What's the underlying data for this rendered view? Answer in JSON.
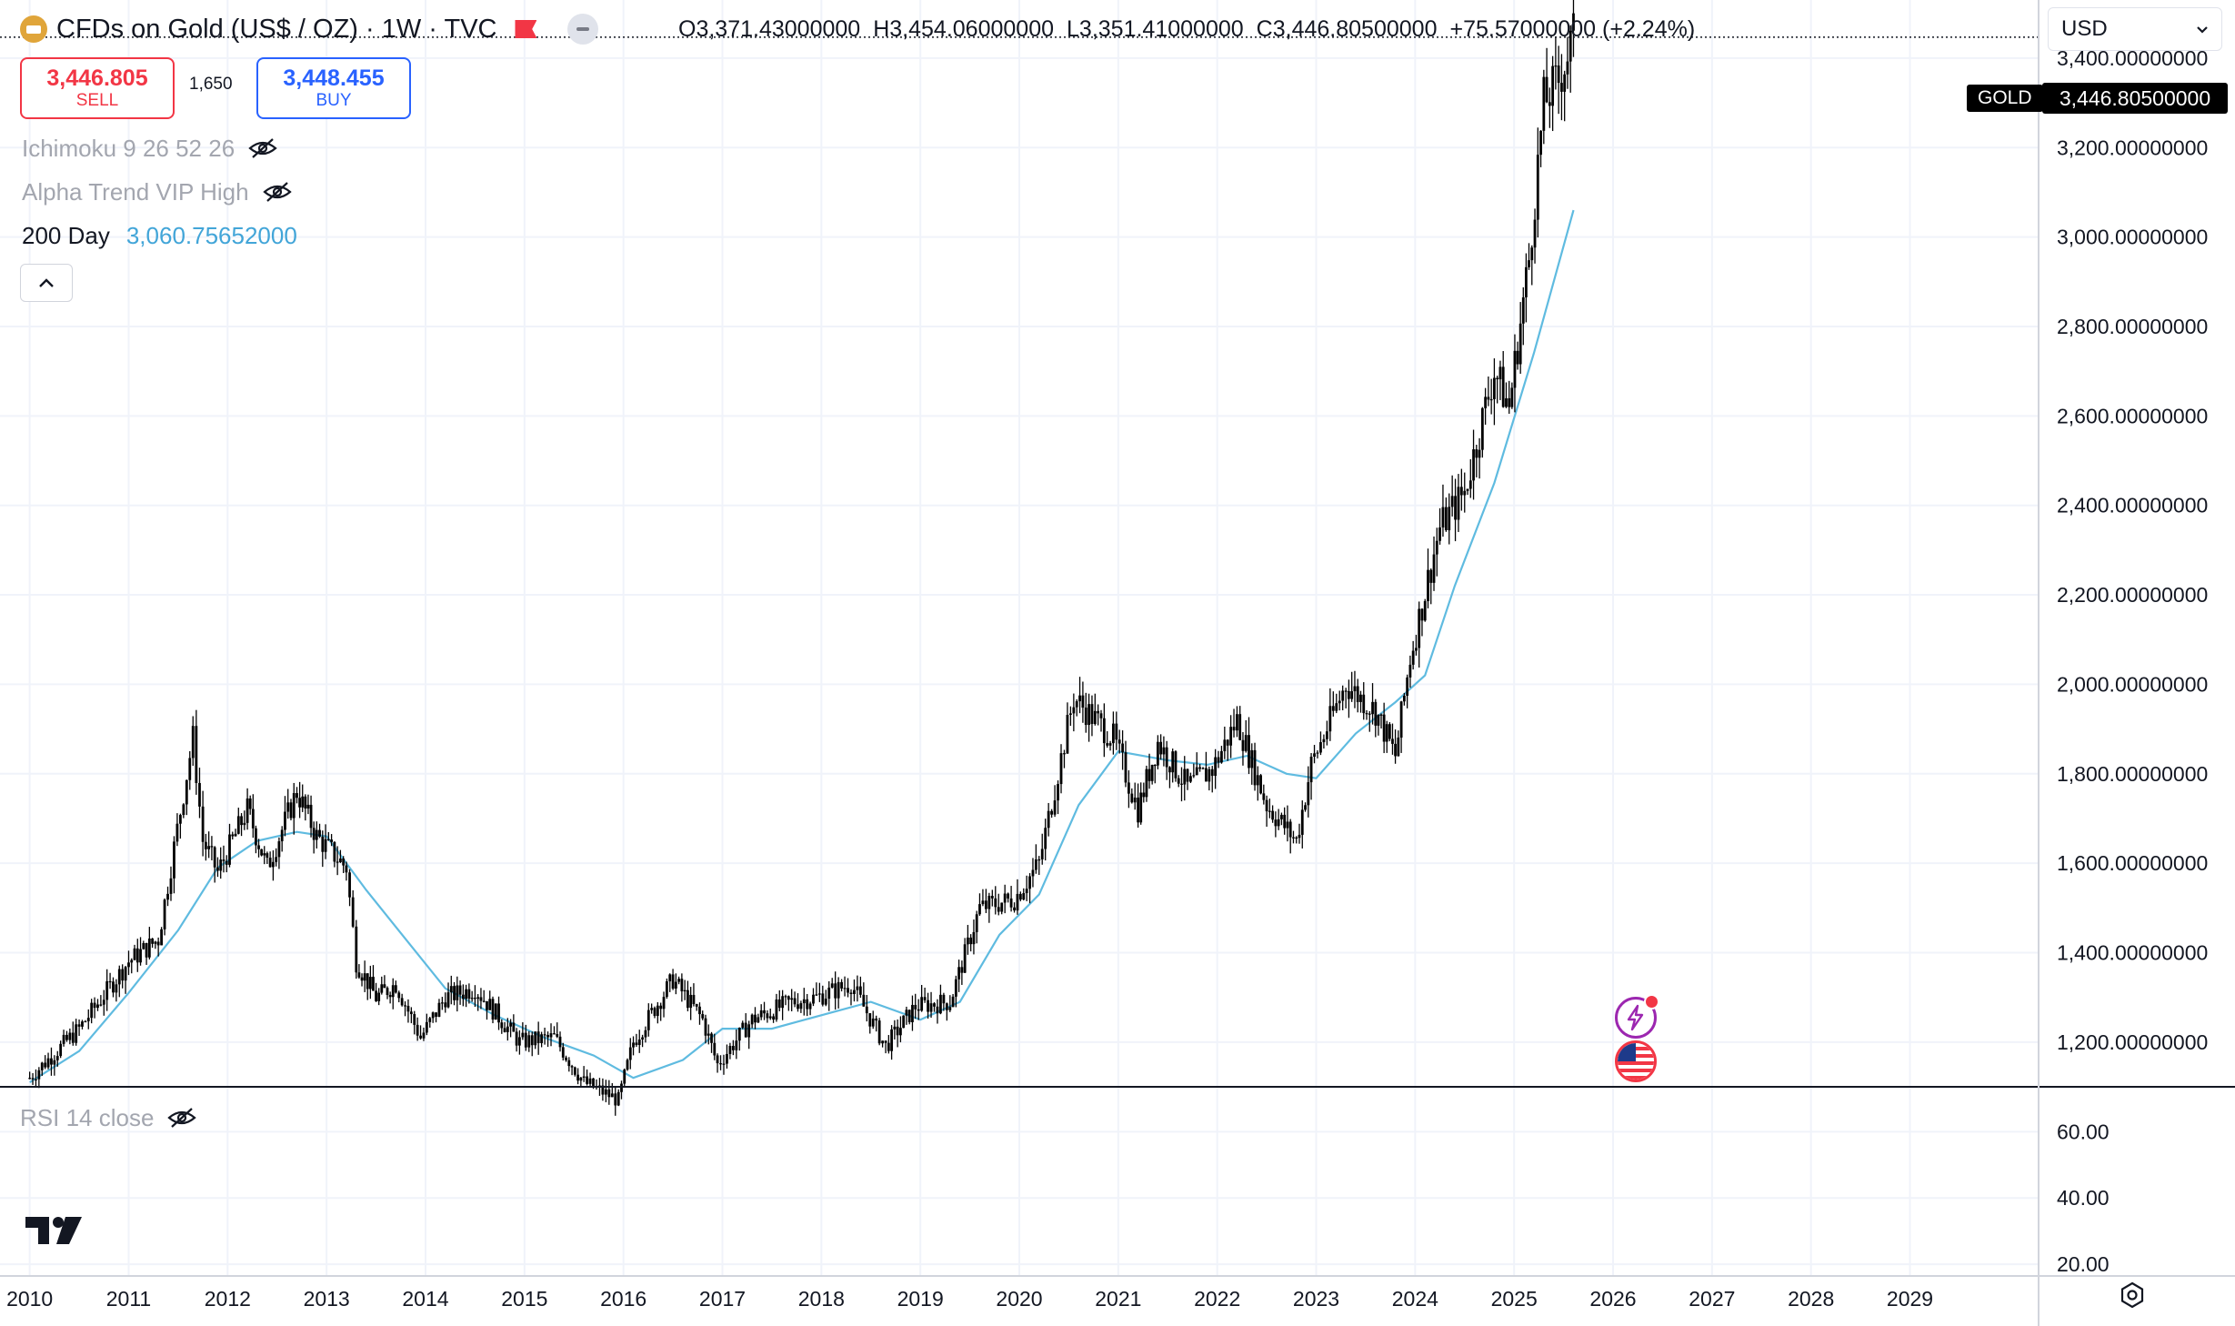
{
  "header": {
    "title": "CFDs on Gold (US$ / OZ) · 1W · TVC",
    "ohlc": {
      "o_key": "O",
      "o_val": "3,371.43000000",
      "h_key": "H",
      "h_val": "3,454.06000000",
      "l_key": "L",
      "l_val": "3,351.41000000",
      "c_key": "C",
      "c_val": "3,446.80500000",
      "change": "+75.57000000 (+2.24%)"
    }
  },
  "trade": {
    "sell_price": "3,446.805",
    "sell_label": "SELL",
    "spread": "1,650",
    "buy_price": "3,448.455",
    "buy_label": "BUY"
  },
  "indicators": {
    "ichimoku": "Ichimoku 9 26 52 26",
    "alpha": "Alpha Trend VIP High",
    "ma_name": "200 Day",
    "ma_value": "3,060.75652000"
  },
  "currency_select": "USD",
  "price_tag": {
    "symbol": "GOLD",
    "price": "3,446.80500000"
  },
  "rsi": {
    "label": "RSI 14 close"
  },
  "colors": {
    "up": "#000000",
    "ma_line": "#5fbbe0",
    "sell": "#f23645",
    "buy": "#2962ff",
    "ma_text": "#42a5d8"
  },
  "icons": [
    "gold-logo-icon",
    "flag-icon",
    "minus-icon",
    "eye-off-icon",
    "chevron-up-icon",
    "chevron-down-icon",
    "tradingview-logo-icon",
    "flash-icon",
    "us-flag-icon",
    "gear-icon"
  ],
  "chart_data": [
    {
      "type": "line",
      "price_axis": [
        "3,400.00000000",
        "3,200.00000000",
        "3,000.00000000",
        "2,800.00000000",
        "2,600.00000000",
        "2,400.00000000",
        "2,200.00000000",
        "2,000.00000000",
        "1,800.00000000",
        "1,600.00000000",
        "1,400.00000000",
        "1,200.00000000"
      ],
      "price_ticks": [
        3400,
        3200,
        3000,
        2800,
        2600,
        2400,
        2200,
        2000,
        1800,
        1600,
        1400,
        1200
      ],
      "x_labels": [
        "2010",
        "2011",
        "2012",
        "2013",
        "2014",
        "2015",
        "2016",
        "2017",
        "2018",
        "2019",
        "2020",
        "2021",
        "2022",
        "2023",
        "2024",
        "2025",
        "2026",
        "2027",
        "2028",
        "2029"
      ],
      "ylim": [
        1100,
        3530
      ],
      "xlim": [
        2009.7,
        2030.3
      ],
      "grid": true,
      "series": [
        {
          "style": "candles",
          "x": [
            2010.0,
            2010.5,
            2011.0,
            2011.3,
            2011.65,
            2011.75,
            2011.9,
            2012.2,
            2012.4,
            2012.7,
            2012.9,
            2013.2,
            2013.3,
            2013.5,
            2013.7,
            2013.95,
            2014.2,
            2014.5,
            2014.95,
            2015.3,
            2015.6,
            2015.95,
            2016.1,
            2016.5,
            2016.8,
            2016.95,
            2017.3,
            2017.7,
            2017.95,
            2018.3,
            2018.65,
            2018.95,
            2019.3,
            2019.6,
            2019.95,
            2020.2,
            2020.55,
            2020.95,
            2021.2,
            2021.4,
            2021.7,
            2021.95,
            2022.2,
            2022.5,
            2022.8,
            2022.95,
            2023.3,
            2023.6,
            2023.8,
            2023.95,
            2024.25,
            2024.5,
            2024.8,
            2024.95,
            2025.15,
            2025.3,
            2025.45,
            2025.6
          ],
          "y": [
            1120,
            1230,
            1380,
            1430,
            1880,
            1650,
            1580,
            1720,
            1590,
            1760,
            1660,
            1590,
            1380,
            1300,
            1330,
            1210,
            1300,
            1320,
            1200,
            1210,
            1110,
            1070,
            1200,
            1340,
            1250,
            1150,
            1250,
            1290,
            1300,
            1330,
            1190,
            1280,
            1290,
            1500,
            1520,
            1600,
            1970,
            1880,
            1720,
            1870,
            1770,
            1810,
            1920,
            1730,
            1650,
            1820,
            2000,
            1940,
            1840,
            2060,
            2350,
            2430,
            2700,
            2620,
            2950,
            3300,
            3350,
            3447
          ]
        },
        {
          "name": "200 Day",
          "x": [
            2010.0,
            2010.5,
            2011.0,
            2011.5,
            2011.9,
            2012.3,
            2012.7,
            2013.0,
            2013.4,
            2013.8,
            2014.2,
            2014.7,
            2015.2,
            2015.7,
            2016.1,
            2016.6,
            2017.0,
            2017.5,
            2018.0,
            2018.5,
            2019.0,
            2019.4,
            2019.8,
            2020.2,
            2020.6,
            2021.0,
            2021.5,
            2021.9,
            2022.3,
            2022.7,
            2023.0,
            2023.4,
            2023.8,
            2024.1,
            2024.4,
            2024.8,
            2025.2,
            2025.6
          ],
          "y": [
            1110,
            1180,
            1310,
            1450,
            1590,
            1650,
            1670,
            1660,
            1540,
            1430,
            1320,
            1260,
            1210,
            1170,
            1120,
            1160,
            1230,
            1230,
            1260,
            1290,
            1250,
            1290,
            1440,
            1530,
            1730,
            1850,
            1830,
            1820,
            1840,
            1800,
            1790,
            1890,
            1960,
            2020,
            2220,
            2450,
            2740,
            3060
          ]
        }
      ]
    },
    {
      "type": "line",
      "title": "RSI 14 close",
      "y_axis": [
        "60.00",
        "40.00",
        "20.00"
      ],
      "y_ticks": [
        60,
        40,
        20
      ],
      "ylim": [
        17,
        73
      ]
    }
  ]
}
